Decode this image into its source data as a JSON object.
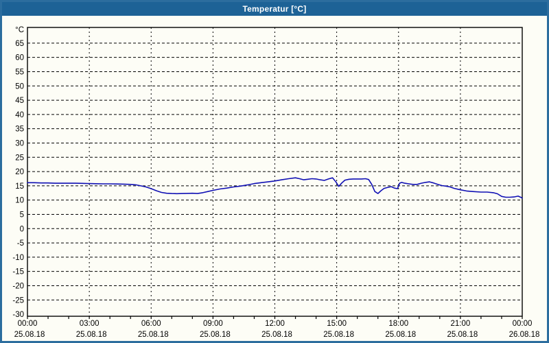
{
  "window": {
    "title": "Temperatur [°C]"
  },
  "chart_data": {
    "type": "line",
    "title": "Temperatur [°C]",
    "ylabel": "°C",
    "xlabel": "",
    "ylim": [
      -30,
      70
    ],
    "xlim_hours": [
      0,
      24
    ],
    "grid": "dashed-black",
    "legend": "none",
    "line_color": "#0f0fb4",
    "y_ticks": [
      65,
      60,
      55,
      50,
      45,
      40,
      35,
      30,
      25,
      20,
      15,
      10,
      5,
      0,
      -5,
      -10,
      -15,
      -20,
      -25,
      -30
    ],
    "x_ticks": [
      {
        "hour": 0,
        "time": "00:00",
        "date": "25.08.18"
      },
      {
        "hour": 3,
        "time": "03:00",
        "date": "25.08.18"
      },
      {
        "hour": 6,
        "time": "06:00",
        "date": "25.08.18"
      },
      {
        "hour": 9,
        "time": "09:00",
        "date": "25.08.18"
      },
      {
        "hour": 12,
        "time": "12:00",
        "date": "25.08.18"
      },
      {
        "hour": 15,
        "time": "15:00",
        "date": "25.08.18"
      },
      {
        "hour": 18,
        "time": "18:00",
        "date": "25.08.18"
      },
      {
        "hour": 21,
        "time": "21:00",
        "date": "25.08.18"
      },
      {
        "hour": 24,
        "time": "00:00",
        "date": "26.08.18"
      }
    ],
    "minor_tick_every_hours": 1,
    "series": [
      {
        "name": "Temperatur",
        "unit": "°C",
        "points": [
          [
            0.0,
            16.1
          ],
          [
            0.33,
            16.1
          ],
          [
            0.67,
            16.0
          ],
          [
            1.0,
            16.0
          ],
          [
            1.33,
            15.9
          ],
          [
            1.67,
            15.9
          ],
          [
            2.0,
            15.9
          ],
          [
            2.33,
            15.9
          ],
          [
            2.67,
            15.85
          ],
          [
            3.0,
            15.8
          ],
          [
            3.33,
            15.75
          ],
          [
            3.67,
            15.7
          ],
          [
            4.0,
            15.7
          ],
          [
            4.33,
            15.65
          ],
          [
            4.67,
            15.6
          ],
          [
            5.0,
            15.5
          ],
          [
            5.25,
            15.35
          ],
          [
            5.5,
            15.0
          ],
          [
            5.75,
            14.6
          ],
          [
            6.0,
            14.0
          ],
          [
            6.25,
            13.3
          ],
          [
            6.5,
            12.7
          ],
          [
            6.75,
            12.4
          ],
          [
            7.0,
            12.3
          ],
          [
            7.25,
            12.25
          ],
          [
            7.5,
            12.3
          ],
          [
            7.75,
            12.35
          ],
          [
            8.0,
            12.4
          ],
          [
            8.25,
            12.3
          ],
          [
            8.5,
            12.6
          ],
          [
            8.75,
            13.0
          ],
          [
            9.0,
            13.4
          ],
          [
            9.33,
            13.9
          ],
          [
            9.67,
            14.2
          ],
          [
            10.0,
            14.6
          ],
          [
            10.33,
            14.9
          ],
          [
            10.67,
            15.3
          ],
          [
            11.0,
            15.8
          ],
          [
            11.33,
            16.1
          ],
          [
            11.67,
            16.4
          ],
          [
            12.0,
            16.7
          ],
          [
            12.33,
            17.1
          ],
          [
            12.67,
            17.5
          ],
          [
            13.0,
            17.8
          ],
          [
            13.2,
            17.5
          ],
          [
            13.4,
            17.1
          ],
          [
            13.6,
            17.3
          ],
          [
            13.8,
            17.5
          ],
          [
            14.0,
            17.4
          ],
          [
            14.2,
            17.1
          ],
          [
            14.4,
            16.9
          ],
          [
            14.6,
            17.4
          ],
          [
            14.8,
            17.8
          ],
          [
            14.95,
            16.5
          ],
          [
            15.1,
            14.8
          ],
          [
            15.25,
            16.0
          ],
          [
            15.4,
            17.0
          ],
          [
            15.6,
            17.3
          ],
          [
            15.8,
            17.4
          ],
          [
            16.0,
            17.4
          ],
          [
            16.2,
            17.4
          ],
          [
            16.4,
            17.5
          ],
          [
            16.55,
            17.2
          ],
          [
            16.7,
            15.5
          ],
          [
            16.85,
            13.0
          ],
          [
            17.0,
            12.3
          ],
          [
            17.15,
            13.3
          ],
          [
            17.3,
            14.1
          ],
          [
            17.5,
            14.5
          ],
          [
            17.65,
            14.7
          ],
          [
            17.8,
            14.2
          ],
          [
            17.95,
            14.0
          ],
          [
            18.05,
            15.9
          ],
          [
            18.15,
            16.2
          ],
          [
            18.3,
            15.9
          ],
          [
            18.5,
            15.7
          ],
          [
            18.7,
            15.5
          ],
          [
            18.9,
            15.5
          ],
          [
            19.1,
            15.9
          ],
          [
            19.3,
            16.2
          ],
          [
            19.5,
            16.4
          ],
          [
            19.7,
            16.0
          ],
          [
            19.9,
            15.5
          ],
          [
            20.1,
            15.1
          ],
          [
            20.3,
            14.9
          ],
          [
            20.5,
            14.6
          ],
          [
            20.7,
            14.1
          ],
          [
            21.0,
            13.6
          ],
          [
            21.3,
            13.2
          ],
          [
            21.6,
            13.0
          ],
          [
            22.0,
            12.8
          ],
          [
            22.3,
            12.8
          ],
          [
            22.6,
            12.6
          ],
          [
            22.8,
            12.2
          ],
          [
            23.0,
            11.3
          ],
          [
            23.2,
            11.0
          ],
          [
            23.4,
            11.0
          ],
          [
            23.6,
            11.1
          ],
          [
            23.8,
            11.4
          ],
          [
            23.95,
            10.9
          ],
          [
            24.0,
            10.7
          ]
        ]
      }
    ]
  }
}
